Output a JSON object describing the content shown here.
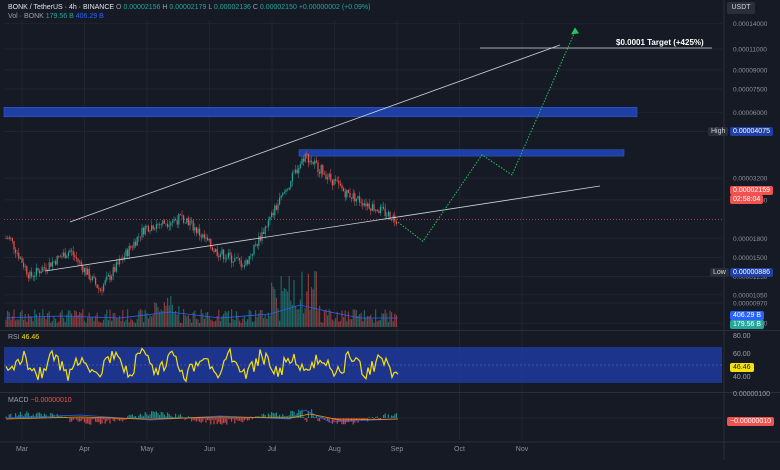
{
  "header": {
    "symbol": "BONK / TetherUS · 4h · BINANCE",
    "o_label": "O",
    "o": "0.00002156",
    "h_label": "H",
    "h": "0.00002179",
    "l_label": "L",
    "l": "0.00002136",
    "c_label": "C",
    "c": "0.00002150",
    "change": "+0.00000002 (+0.09%)",
    "vol_label": "Vol · BONK",
    "vol1": "179.56 B",
    "vol2": "406.29 B"
  },
  "currency": "USDT",
  "annotations": {
    "target": "$0.0001 Target (+425%)",
    "high_label": "High",
    "high_value": "0.00004075",
    "low_label": "Low",
    "low_value": "0.00000886",
    "price_tag": "0.00002159",
    "countdown": "02:58:04",
    "vol_tag1": "406.29 B",
    "vol_tag2": "179.56 B"
  },
  "rsi": {
    "label": "RSI",
    "value": "46.46",
    "axis_top": "80.00",
    "axis_mid": "60.00",
    "axis_low": "40.00",
    "tag": "46.46"
  },
  "macd": {
    "label": "MACD",
    "value": "−0.00000010",
    "axis_top": "0.00000100",
    "tag": "−0.00000010"
  },
  "colors": {
    "background": "#161a25",
    "zone": "#1e3fa6",
    "up": "#26a69a",
    "down": "#ef5350",
    "rsi_line": "#f5e10d",
    "rsi_band": "#1f3aa0",
    "projection": "#22c55e",
    "trendline": "#d1d4dc"
  },
  "chart_data": {
    "type": "candlestick",
    "title": "BONK / TetherUS · 4h · BINANCE",
    "xlabel": "",
    "ylabel": "",
    "x_ticks": [
      "Mar",
      "Apr",
      "May",
      "Jun",
      "Jul",
      "Aug",
      "Sep",
      "Oct",
      "Nov"
    ],
    "y_scale": "log",
    "y_ticks": [
      "0.00014000",
      "0.00011000",
      "0.00009000",
      "0.00007500",
      "0.00006000",
      "0.00005000",
      "0.00003200",
      "0.00002600",
      "0.00001800",
      "0.00001500",
      "0.00001250",
      "0.00001050",
      "0.00000970",
      "0.00000800"
    ],
    "ylim": [
      7.5e-06,
      0.000145
    ],
    "price_path": [
      {
        "month": "Mar",
        "price": 1.8e-05
      },
      {
        "month": "Mar",
        "price": 1.25e-05
      },
      {
        "month": "Apr",
        "price": 1.6e-05
      },
      {
        "month": "Apr",
        "price": 1.1e-05
      },
      {
        "month": "May",
        "price": 2e-05
      },
      {
        "month": "May",
        "price": 2.2e-05
      },
      {
        "month": "Jun",
        "price": 1.6e-05
      },
      {
        "month": "Jun",
        "price": 1.4e-05
      },
      {
        "month": "Jul",
        "price": 4e-05
      },
      {
        "month": "Aug",
        "price": 2.8e-05
      },
      {
        "month": "Sep",
        "price": 2.15e-05
      }
    ],
    "high": 4.075e-05,
    "low": 8.86e-06,
    "last": 2.159e-05,
    "zones": [
      {
        "from": 5.75e-05,
        "to": 6.3e-05
      },
      {
        "from": 3.95e-05,
        "to": 4.2e-05
      }
    ],
    "projection": [
      {
        "month": "Sep",
        "price": 2.1e-05
      },
      {
        "month": "Sep",
        "price": 1.75e-05
      },
      {
        "month": "Oct",
        "price": 4e-05
      },
      {
        "month": "Oct",
        "price": 3.3e-05
      },
      {
        "month": "Nov",
        "price": 0.00013
      }
    ],
    "target": 0.0001,
    "rsi_last": 46.46,
    "macd_last": -1e-07
  }
}
